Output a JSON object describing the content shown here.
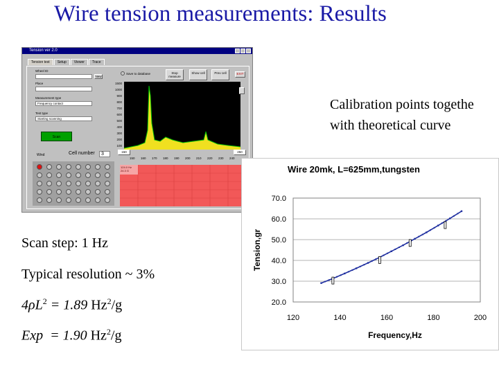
{
  "slide": {
    "title": "Wire tension measurements: Results",
    "caption_line1": "Calibration points togethe",
    "caption_line2": "with theoretical curve",
    "scan_step": "Scan step: 1 Hz",
    "resolution": "Typical resolution ~ 3%",
    "formula_prefix": "4ρL",
    "formula_exp": "2",
    "formula_mid": " = 1.89",
    "formula_unit": " Hz",
    "formula_unit_exp": "2",
    "formula_unit_tail": "/g",
    "exp_label": "Exp",
    "exp_mid": "  = 1.90",
    "exp_unit": " Hz",
    "exp_unit_exp": "2",
    "exp_unit_tail": "/g"
  },
  "app": {
    "window_title": "Tension ver 2.0",
    "tabs": [
      "Tension test",
      "Setup",
      "Viewer",
      "Trace"
    ],
    "save_label": "Save to database",
    "buttons": [
      "Stop measure",
      "Show cell",
      "Prev cell"
    ],
    "exit_label": "EXIT",
    "fields": [
      {
        "label": "Wheel ID",
        "value": ""
      },
      {
        "label": "Place",
        "value": ""
      },
      {
        "label": "Measurement type",
        "value": "Frequency contact"
      },
      {
        "label": "Test type",
        "value": "Starting scanning"
      }
    ],
    "new_label": "New",
    "scan_label": "Scan",
    "cell_label": "Cell number",
    "cell_value": "3",
    "wind_label": "Wind",
    "range_low": "150",
    "range_high": "250",
    "y_ticks": [
      "1500",
      "1000",
      "900",
      "800",
      "700",
      "600",
      "500",
      "400",
      "300",
      "200",
      "100"
    ],
    "x_ticks": [
      "150",
      "160",
      "170",
      "180",
      "190",
      "200",
      "210",
      "220",
      "230",
      "240"
    ],
    "cell_info": [
      "124.0 Hz",
      "24.3 G"
    ]
  },
  "chart_data": {
    "type": "scatter",
    "title": "Wire 20mk, L=625mm,tungsten",
    "xlabel": "Frequency,Hz",
    "ylabel": "Tension,gr",
    "xlim": [
      120,
      200
    ],
    "ylim": [
      20,
      70
    ],
    "x_ticks": [
      "120",
      "140",
      "160",
      "180",
      "200"
    ],
    "y_ticks": [
      "70.0",
      "60.0",
      "50.0",
      "40.0",
      "30.0",
      "20.0"
    ],
    "grid": true,
    "series": [
      {
        "type": "line",
        "x": [
          132,
          137,
          142,
          147,
          152,
          157,
          162,
          167,
          172,
          177,
          182,
          187,
          192
        ],
        "y": [
          29.1,
          31.3,
          33.7,
          36.2,
          38.8,
          41.5,
          44.4,
          47.3,
          50.4,
          53.5,
          56.8,
          60.2,
          63.7
        ]
      },
      {
        "type": "calibration",
        "x": [
          137,
          157,
          170,
          185
        ],
        "y": [
          31.3,
          41.2,
          49.4,
          58.0
        ]
      }
    ]
  },
  "colors": {
    "title": "#1a1aa6",
    "curve": "#1f2fa0",
    "spectrum": "#f0e020",
    "spectrum_line": "#00c000"
  }
}
